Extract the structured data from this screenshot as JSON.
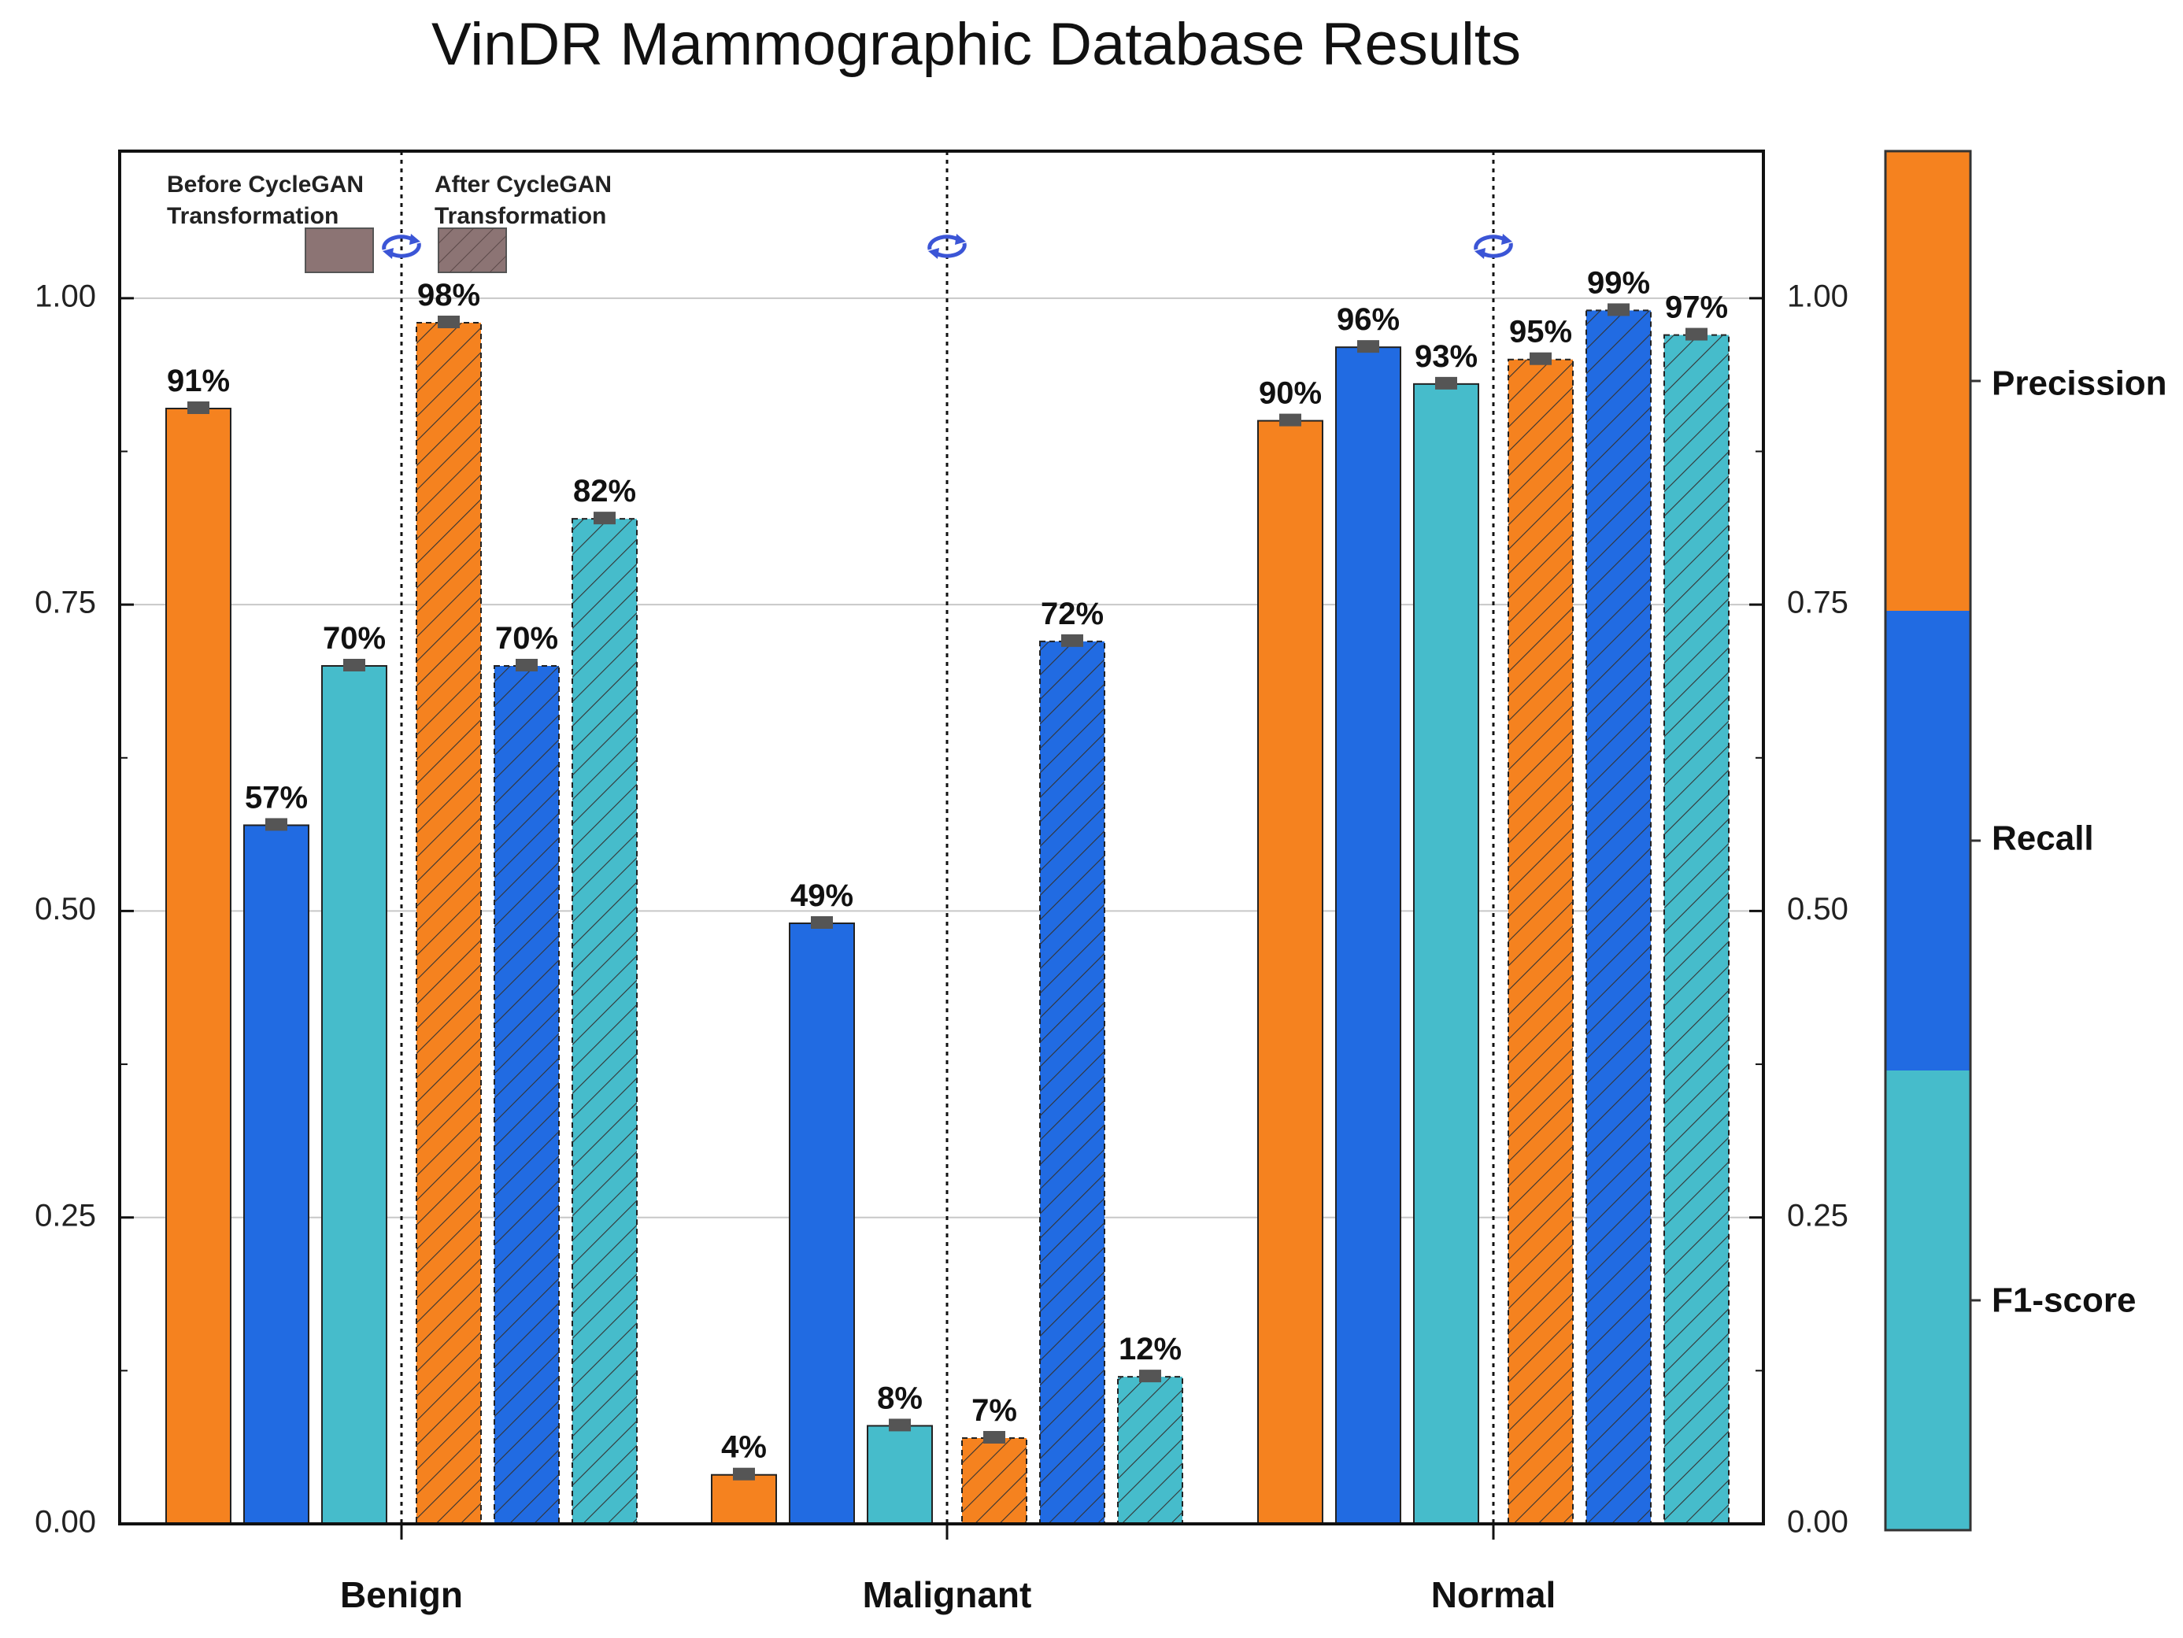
{
  "chart_data": {
    "type": "bar",
    "title": "VinDR Mammographic Database Results",
    "xlabel": "",
    "ylabel": "",
    "ylim": [
      0,
      1.12
    ],
    "y_ticks": [
      "0.00",
      "0.25",
      "0.50",
      "0.75",
      "1.00"
    ],
    "y_tick_values": [
      0,
      0.25,
      0.5,
      0.75,
      1.0
    ],
    "grid": "horizontal",
    "categories": [
      "Benign",
      "Malignant",
      "Normal"
    ],
    "groups": [
      "Before CycleGAN Transformation",
      "After CycleGAN Transformation"
    ],
    "series": [
      {
        "name": "Precission",
        "color": "#F5821F",
        "before": [
          0.91,
          0.04,
          0.9
        ],
        "after": [
          0.98,
          0.07,
          0.95
        ]
      },
      {
        "name": "Recall",
        "color": "#216BE2",
        "before": [
          0.57,
          0.49,
          0.96
        ],
        "after": [
          0.7,
          0.72,
          0.99
        ]
      },
      {
        "name": "F1-score",
        "color": "#46BCCB",
        "before": [
          0.7,
          0.08,
          0.93
        ],
        "after": [
          0.82,
          0.12,
          0.97
        ]
      }
    ],
    "data_labels": {
      "before": [
        [
          "91%",
          "57%",
          "70%"
        ],
        [
          "4%",
          "49%",
          "8%"
        ],
        [
          "90%",
          "96%",
          "93%"
        ]
      ],
      "after": [
        [
          "98%",
          "70%",
          "82%"
        ],
        [
          "7%",
          "72%",
          "12%"
        ],
        [
          "95%",
          "99%",
          "97%"
        ]
      ]
    },
    "legend": {
      "before_label_lines": [
        "Before CycleGAN",
        "Transformation"
      ],
      "after_label_lines": [
        "After CycleGAN",
        "Transformation"
      ],
      "swatch_color": "#8C7474",
      "placement": "top-left"
    },
    "colorbar": {
      "labels": [
        "Precission",
        "Recall",
        "F1-score"
      ],
      "ticks": [
        "0.00",
        "0.25",
        "0.50",
        "0.75",
        "1.00"
      ]
    }
  }
}
